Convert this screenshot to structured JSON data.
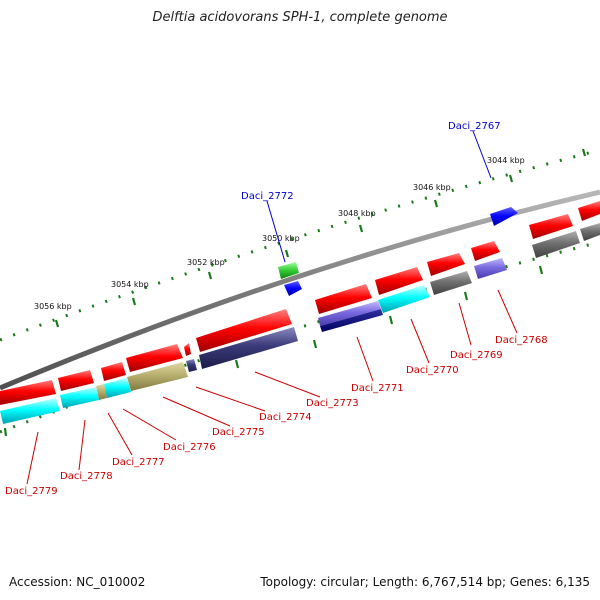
{
  "title": "Delftia acidovorans SPH-1, complete genome",
  "scale_labels": [
    "3044 kbp",
    "3046 kbp",
    "3048 kbp",
    "3050 kbp",
    "3052 kbp",
    "3054 kbp",
    "3056 kbp"
  ],
  "genes_blue": [
    "Daci_2767",
    "Daci_2772"
  ],
  "genes_red": [
    "Daci_2768",
    "Daci_2769",
    "Daci_2770",
    "Daci_2771",
    "Daci_2773",
    "Daci_2774",
    "Daci_2775",
    "Daci_2776",
    "Daci_2777",
    "Daci_2778",
    "Daci_2779"
  ],
  "footer": {
    "accession": "Accession: NC_010002",
    "summary": "Topology: circular; Length: 6,767,514 bp; Genes: 6,135"
  },
  "colors": {
    "forward": "#ff0000",
    "cyan": "#00ffff",
    "gray": "#707070",
    "navy": "#3a3a7a",
    "khaki": "#b8b070",
    "lavender": "#7a6ae0",
    "blue": "#0000ff",
    "green": "#33cc33",
    "tick": "#1a7a1a",
    "label_red": "#cc0000",
    "label_blue": "#0000cc"
  }
}
